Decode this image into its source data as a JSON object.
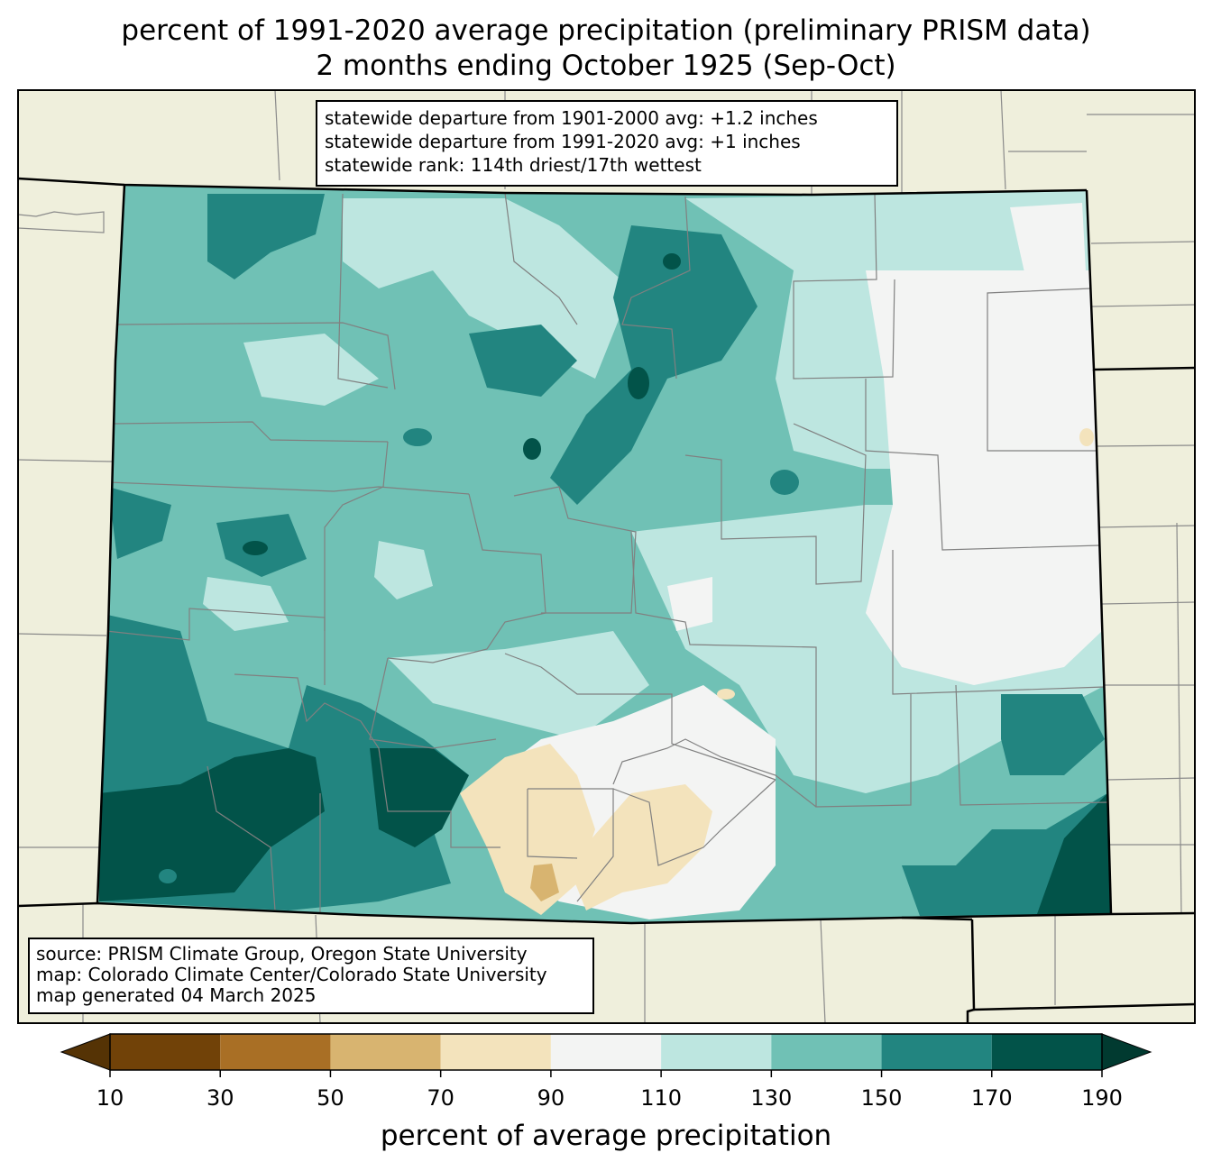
{
  "title": {
    "line1": "percent of 1991-2020 average precipitation (preliminary PRISM data)",
    "line2": "2 months ending October 1925 (Sep-Oct)"
  },
  "stats_box": {
    "line1": "statewide departure from 1901-2000 avg: +1.2 inches",
    "line2": "statewide departure from 1991-2020 avg: +1 inches",
    "line3": "statewide rank: 114th driest/17th wettest"
  },
  "source_box": {
    "line1": "source: PRISM Climate Group, Oregon State University",
    "line2": "map: Colorado Climate Center/Colorado State University",
    "line3": "map generated 04 March 2025"
  },
  "colorbar": {
    "title": "percent of average precipitation",
    "ticks": [
      "10",
      "30",
      "50",
      "70",
      "90",
      "110",
      "130",
      "150",
      "170",
      "190"
    ],
    "colors": [
      "#714208",
      "#a96f25",
      "#d8b470",
      "#f3e3bc",
      "#f3f4f3",
      "#bde6e0",
      "#70c1b5",
      "#228580",
      "#025349"
    ],
    "under_color": "#553305",
    "over_color": "#013a30"
  },
  "map": {
    "state": "Colorado",
    "land_color": "#efefdc",
    "county_line_color": "#808080",
    "state_line_color": "#000000"
  }
}
